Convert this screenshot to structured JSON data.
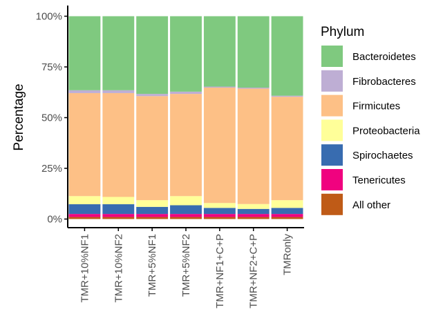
{
  "chart_data": {
    "type": "bar",
    "stacked": true,
    "orientation": "vertical",
    "ylabel": "Percentage",
    "xlabel": "",
    "ylim": [
      0,
      100
    ],
    "y_ticks": [
      "0%",
      "25%",
      "50%",
      "75%",
      "100%"
    ],
    "grid": false,
    "legend_title": "Phylum",
    "legend_position": "right",
    "categories": [
      "TMR+10%NF1",
      "TMR+10%NF2",
      "TMR+5%NF1",
      "TMR+5%NF2",
      "TMR+NF1+C+P",
      "TMR+NF2+C+P",
      "TMRonly"
    ],
    "series": [
      {
        "name": "All other",
        "color": "#bf5b17",
        "values": [
          1.0,
          1.0,
          1.0,
          1.0,
          1.0,
          1.0,
          1.0
        ]
      },
      {
        "name": "Tenericutes",
        "color": "#f0027f",
        "values": [
          1.5,
          1.5,
          1.5,
          1.5,
          1.5,
          1.5,
          1.5
        ]
      },
      {
        "name": "Spirochaetes",
        "color": "#386cb0",
        "values": [
          4.8,
          4.8,
          3.5,
          4.3,
          3.0,
          2.5,
          3.0
        ]
      },
      {
        "name": "Proteobacteria",
        "color": "#ffff99",
        "values": [
          4.0,
          3.6,
          3.3,
          4.5,
          2.4,
          2.4,
          3.8
        ]
      },
      {
        "name": "Firmicutes",
        "color": "#fdc086",
        "values": [
          50.8,
          51.2,
          51.3,
          50.4,
          56.9,
          56.9,
          51.0
        ]
      },
      {
        "name": "Fibrobacteres",
        "color": "#beaed4",
        "values": [
          1.4,
          1.4,
          1.1,
          1.1,
          0.5,
          0.5,
          0.5
        ]
      },
      {
        "name": "Bacteroidetes",
        "color": "#7fc97f",
        "values": [
          36.5,
          36.5,
          38.3,
          37.2,
          34.7,
          35.2,
          39.2
        ]
      }
    ],
    "legend_order": [
      "Bacteroidetes",
      "Fibrobacteres",
      "Firmicutes",
      "Proteobacteria",
      "Spirochaetes",
      "Tenericutes",
      "All other"
    ]
  }
}
